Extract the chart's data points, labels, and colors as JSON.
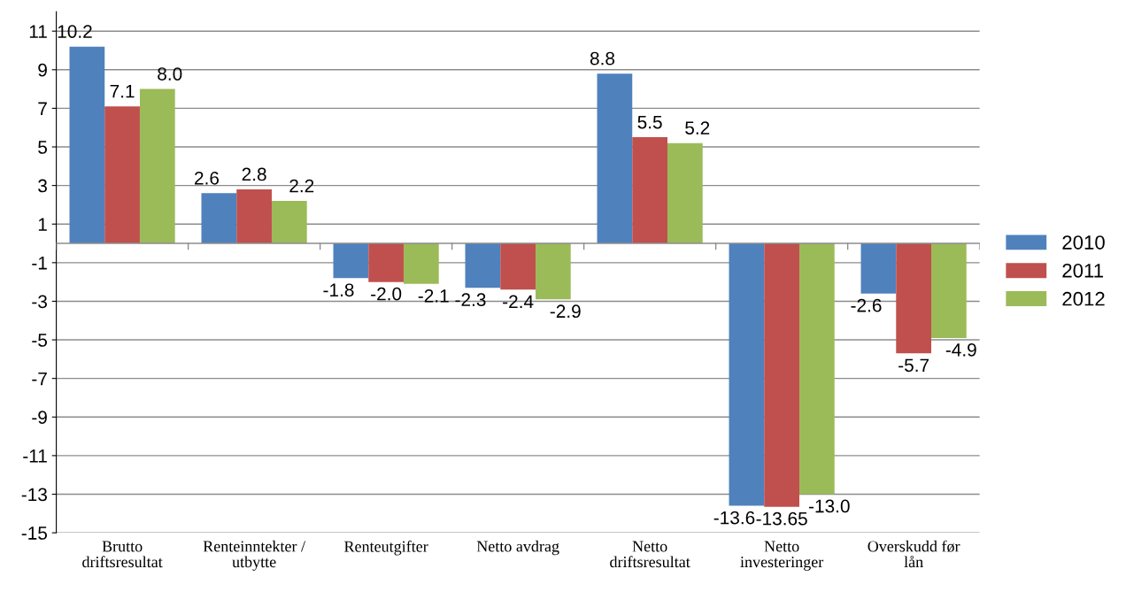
{
  "chart_data": {
    "type": "bar",
    "categories": [
      "Brutto driftsresultat",
      "Renteinntekter / utbytte",
      "Renteutgifter",
      "Netto avdrag",
      "Netto driftsresultat",
      "Netto investeringer",
      "Overskudd før lån"
    ],
    "series": [
      {
        "name": "2010",
        "color": "#4f81bd",
        "values": [
          10.2,
          2.6,
          -1.8,
          -2.3,
          8.8,
          -13.6,
          -2.6
        ],
        "value_labels": [
          "10.2",
          "2.6",
          "-1.8",
          "-2.3",
          "8.8",
          "-13.6",
          "-2.6"
        ]
      },
      {
        "name": "2011",
        "color": "#c0504d",
        "values": [
          7.1,
          2.8,
          -2.0,
          -2.4,
          5.5,
          -13.65,
          -5.7
        ],
        "value_labels": [
          "7.1",
          "2.8",
          "-2.0",
          "-2.4",
          "5.5",
          "-13.65",
          "-5.7"
        ]
      },
      {
        "name": "2012",
        "color": "#9bbb59",
        "values": [
          8.0,
          2.2,
          -2.1,
          -2.9,
          5.2,
          -13.0,
          -4.9
        ],
        "value_labels": [
          "8.0",
          "2.2",
          "-2.1",
          "-2.9",
          "5.2",
          "-13.0",
          "-4.9"
        ]
      }
    ],
    "ylim": [
      -15,
      12
    ],
    "yticks": [
      -15,
      -13,
      -11,
      -9,
      -7,
      -5,
      -3,
      -1,
      1,
      3,
      5,
      7,
      9,
      11
    ],
    "grid": "y",
    "legend": "right"
  }
}
